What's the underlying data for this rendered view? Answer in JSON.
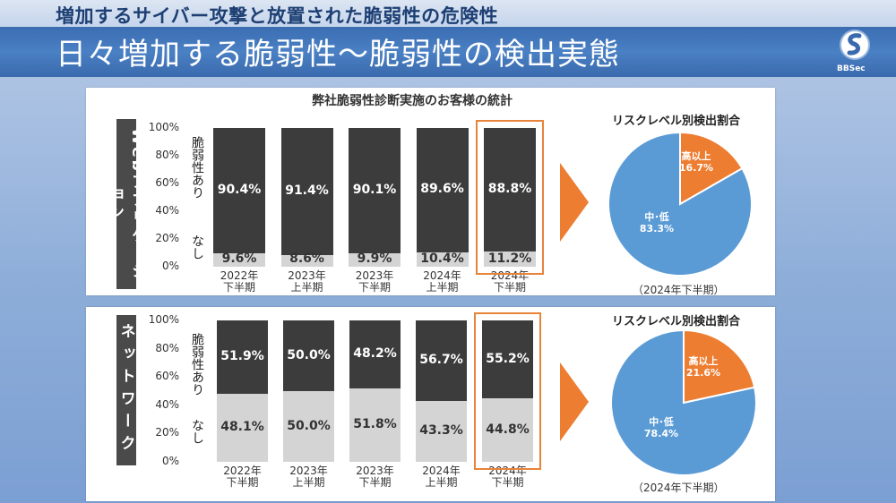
{
  "header": {
    "subtitle": "増加するサイバー攻撃と放置された脆弱性の危険性",
    "title": "日々増加する脆弱性〜脆弱性の検出実態",
    "logo_text": "BBSec"
  },
  "colors": {
    "dark_bar": "#3c3c3c",
    "light_bar": "#d4d4d4",
    "highlight": "#e8833a",
    "pie_blue": "#5b9bd5",
    "pie_orange": "#ed7d31"
  },
  "chart_title": "弊社脆弱性診断実施のお客様の統計",
  "chart_data": [
    {
      "type": "bar",
      "stacked": true,
      "panel_label": "Webアプリケーション",
      "categories": [
        "2022年\n下半期",
        "2023年\n上半期",
        "2023年\n下半期",
        "2024年\n上半期",
        "2024年\n下半期"
      ],
      "category_lines": [
        [
          "2022年",
          "下半期"
        ],
        [
          "2023年",
          "上半期"
        ],
        [
          "2023年",
          "下半期"
        ],
        [
          "2024年",
          "上半期"
        ],
        [
          "2024年",
          "下半期"
        ]
      ],
      "series": [
        {
          "name": "脆弱性あり",
          "values": [
            90.4,
            91.4,
            90.1,
            89.6,
            88.8
          ],
          "labels": [
            "90.4%",
            "91.4%",
            "90.1%",
            "89.6%",
            "88.8%"
          ]
        },
        {
          "name": "なし",
          "values": [
            9.6,
            8.6,
            9.9,
            10.4,
            11.2
          ],
          "labels": [
            "9.6%",
            "8.6%",
            "9.9%",
            "10.4%",
            "11.2%"
          ]
        }
      ],
      "yticks": [
        "0%",
        "20%",
        "40%",
        "60%",
        "80%",
        "100%"
      ],
      "ylim": [
        0,
        100
      ],
      "highlight_category": 4
    },
    {
      "type": "bar",
      "stacked": true,
      "panel_label": "ネットワーク",
      "categories": [
        "2022年\n下半期",
        "2023年\n上半期",
        "2023年\n下半期",
        "2024年\n上半期",
        "2024年\n下半期"
      ],
      "category_lines": [
        [
          "2022年",
          "下半期"
        ],
        [
          "2023年",
          "上半期"
        ],
        [
          "2023年",
          "下半期"
        ],
        [
          "2024年",
          "上半期"
        ],
        [
          "2024年",
          "下半期"
        ]
      ],
      "series": [
        {
          "name": "脆弱性あり",
          "values": [
            51.9,
            50.0,
            48.2,
            56.7,
            55.2
          ],
          "labels": [
            "51.9%",
            "50.0%",
            "48.2%",
            "56.7%",
            "55.2%"
          ]
        },
        {
          "name": "なし",
          "values": [
            48.1,
            50.0,
            51.8,
            43.3,
            44.8
          ],
          "labels": [
            "48.1%",
            "50.0%",
            "51.8%",
            "43.3%",
            "44.8%"
          ]
        }
      ],
      "yticks": [
        "0%",
        "20%",
        "40%",
        "60%",
        "80%",
        "100%"
      ],
      "ylim": [
        0,
        100
      ],
      "highlight_category": 4
    },
    {
      "type": "pie",
      "title": "リスクレベル別検出割合",
      "subtitle": "（2024年下半期）",
      "slices": [
        {
          "name": "高以上",
          "value": 16.7,
          "label": "16.7%"
        },
        {
          "name": "中･低",
          "value": 83.3,
          "label": "83.3%"
        }
      ]
    },
    {
      "type": "pie",
      "title": "リスクレベル別検出割合",
      "subtitle": "（2024年下半期）",
      "slices": [
        {
          "name": "高以上",
          "value": 21.6,
          "label": "21.6%"
        },
        {
          "name": "中･低",
          "value": 78.4,
          "label": "78.4%"
        }
      ]
    }
  ]
}
